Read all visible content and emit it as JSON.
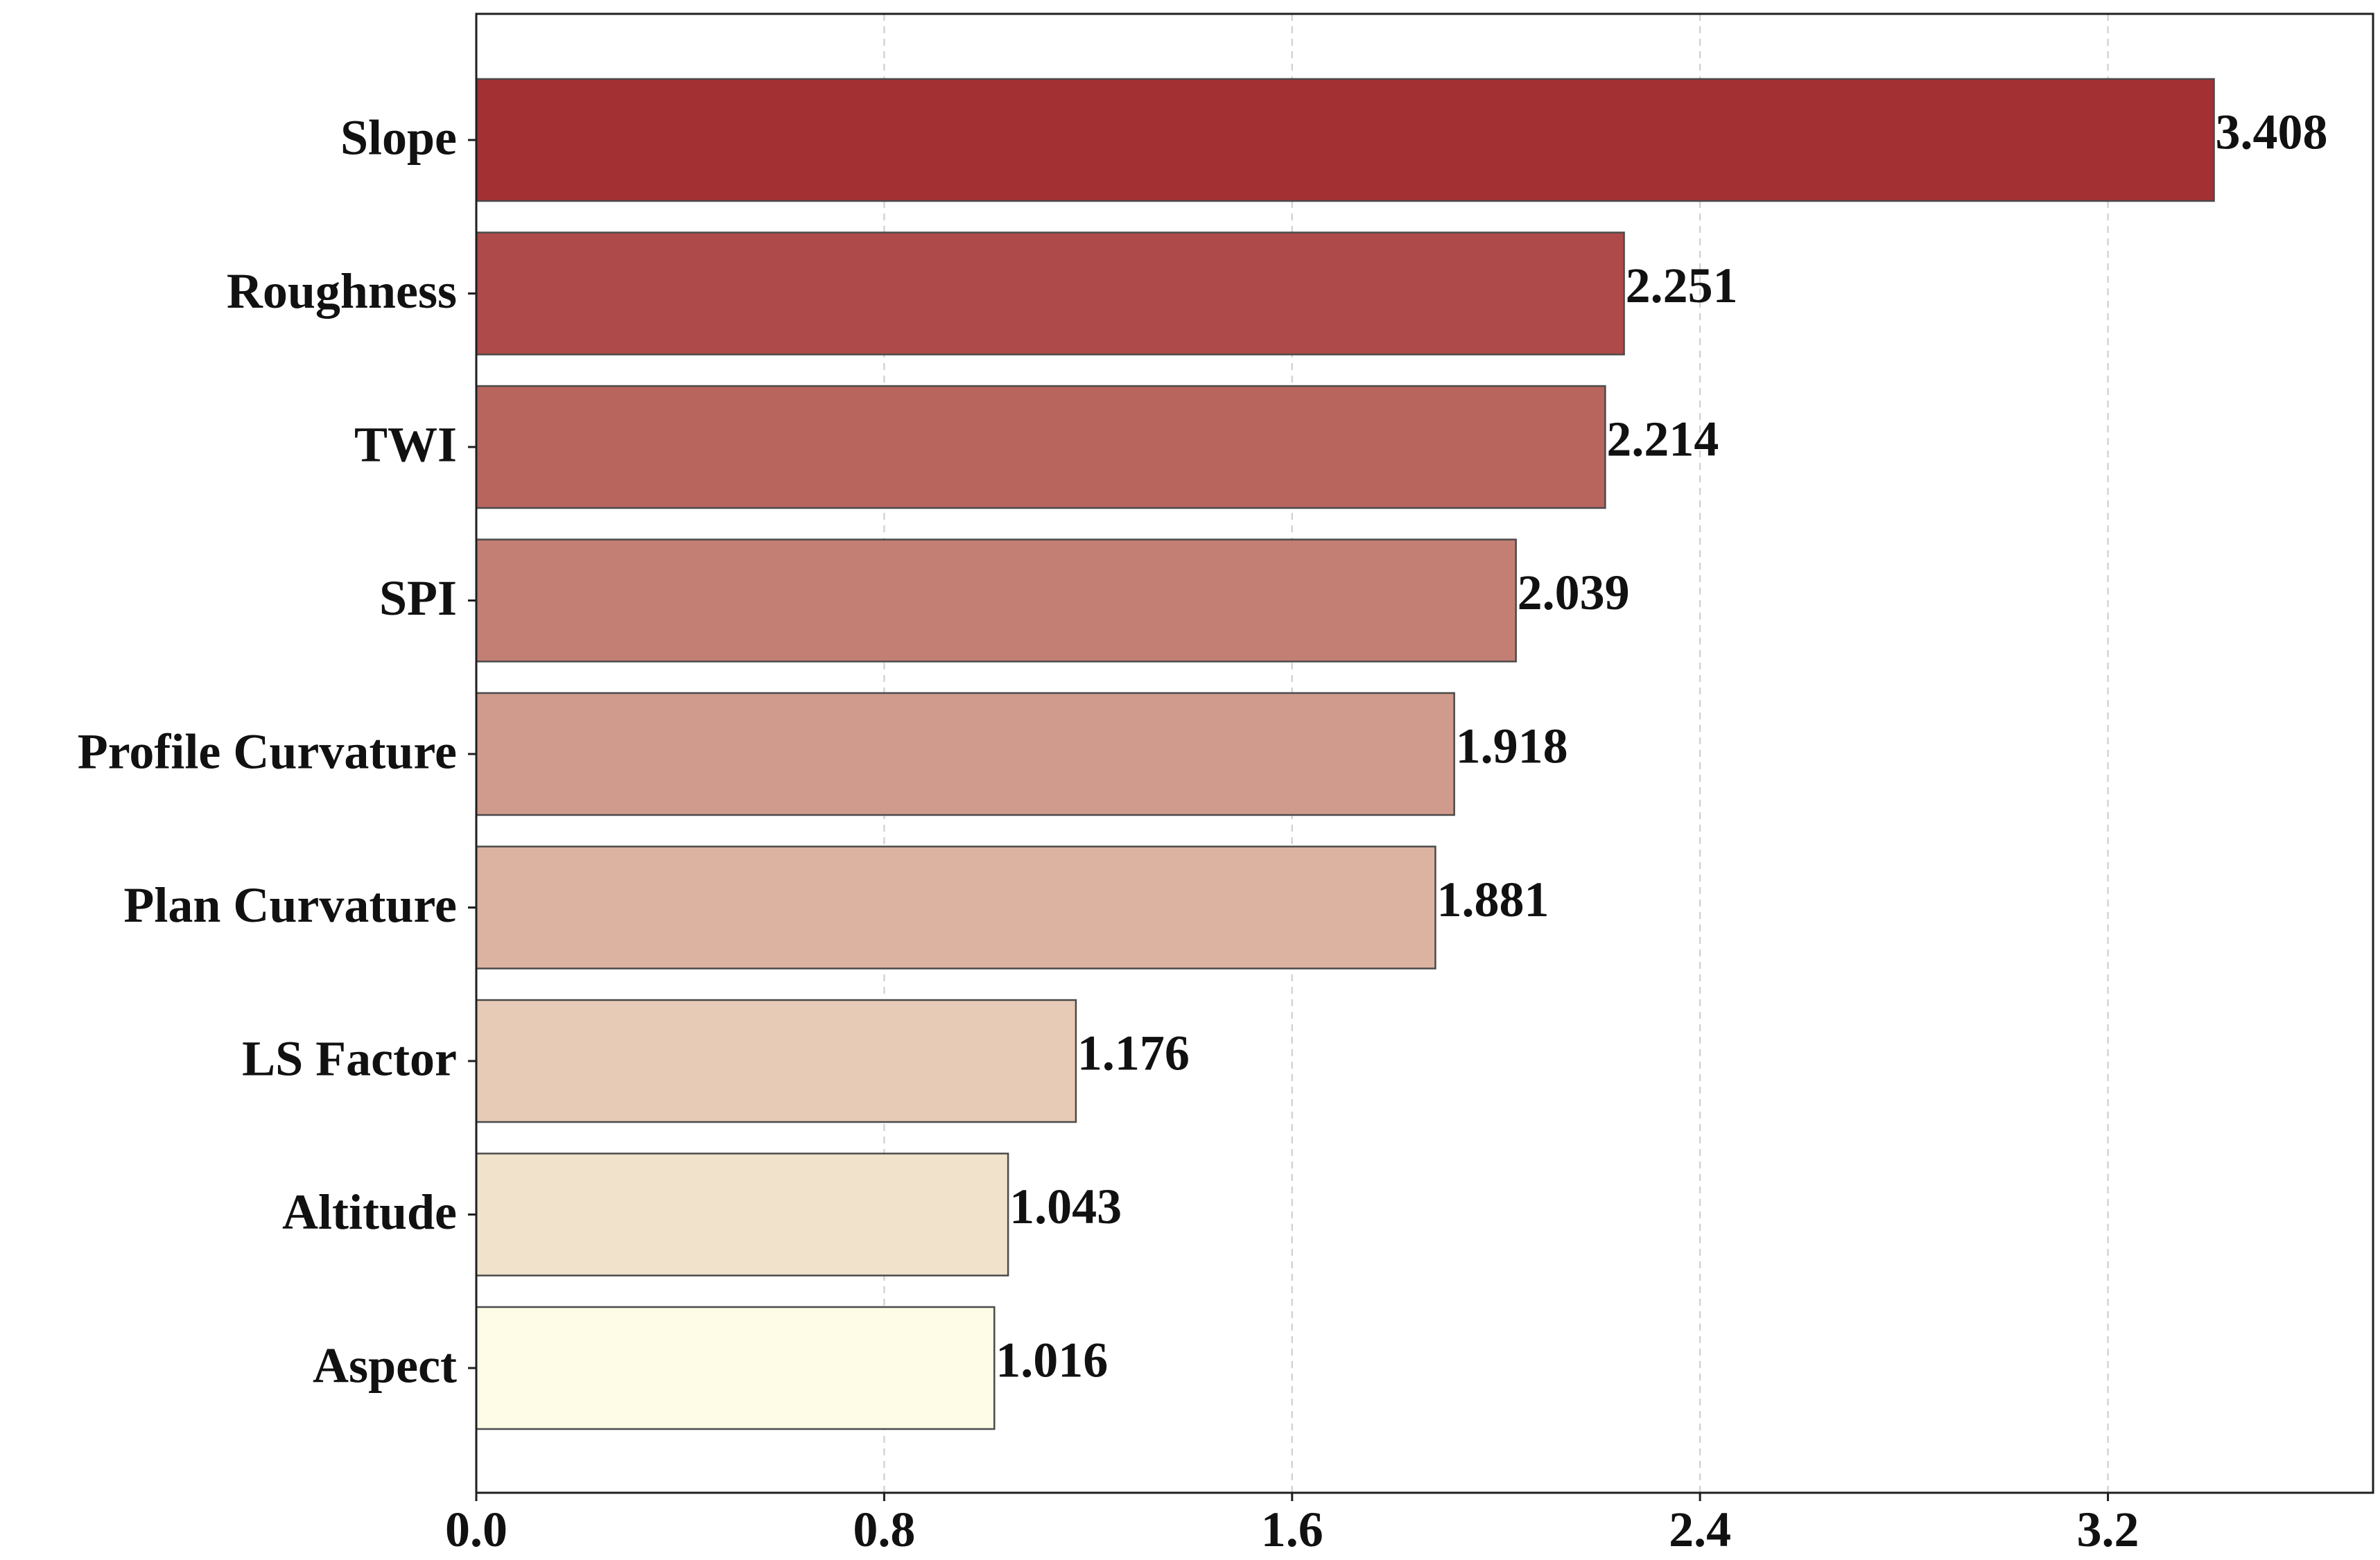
{
  "chart_data": {
    "type": "bar",
    "orientation": "horizontal",
    "title": "",
    "xlabel": "",
    "ylabel": "",
    "categories": [
      "Slope",
      "Roughness",
      "TWI",
      "SPI",
      "Profile Curvature",
      "Plan Curvature",
      "LS Factor",
      "Altitude",
      "Aspect"
    ],
    "values": [
      3.408,
      2.251,
      2.214,
      2.039,
      1.918,
      1.881,
      1.176,
      1.043,
      1.016
    ],
    "value_labels": [
      "3.408",
      "2.251",
      "2.214",
      "2.039",
      "1.918",
      "1.881",
      "1.176",
      "1.043",
      "1.016"
    ],
    "xlim": [
      0,
      3.72
    ],
    "x_ticks": [
      0.0,
      0.8,
      1.6,
      2.4,
      3.2
    ],
    "x_tick_labels": [
      "0.0",
      "0.8",
      "1.6",
      "2.4",
      "3.2"
    ],
    "grid": "vertical dashed",
    "legend": "none",
    "bar_colors": [
      "#a33033",
      "#ae4a49",
      "#b8655e",
      "#c47f75",
      "#d09b8c",
      "#dcb3a1",
      "#e7cbb7",
      "#f1e2cc",
      "#fefce6"
    ]
  }
}
